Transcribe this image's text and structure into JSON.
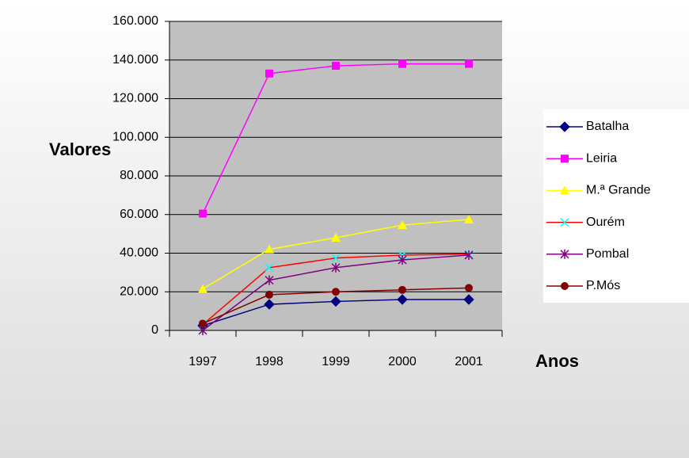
{
  "chart_data": {
    "type": "line",
    "categories": [
      "1997",
      "1998",
      "1999",
      "2000",
      "2001"
    ],
    "xlabel": "Anos",
    "ylabel": "Valores",
    "ylim": [
      0,
      160000
    ],
    "yticks": [
      0,
      {
        "value": 20000,
        "label": "20.000"
      },
      {
        "value": 40000,
        "label": "40.000"
      },
      {
        "value": 60000,
        "label": "60.000"
      },
      {
        "value": 80000,
        "label": "80.000"
      },
      {
        "value": 100000,
        "label": "100.000"
      },
      {
        "value": 120000,
        "label": "120.000"
      },
      {
        "value": 140000,
        "label": "140.000"
      },
      {
        "value": 160000,
        "label": "160.000"
      }
    ],
    "grid": true,
    "legend": "right",
    "series": [
      {
        "name": "Batalha",
        "color": "#000080",
        "marker": "diamond",
        "values": [
          2500,
          13500,
          15000,
          16000,
          16000
        ]
      },
      {
        "name": "Leiria",
        "color": "#ff00ff",
        "marker": "square",
        "values": [
          60500,
          133000,
          137000,
          138000,
          138000
        ]
      },
      {
        "name": "M.ª Grande",
        "color": "#ffff00",
        "marker": "triangle",
        "values": [
          21500,
          42000,
          48000,
          54500,
          57500
        ]
      },
      {
        "name": "Ourém",
        "color": "#ff0000",
        "marker": "x",
        "marker_color": "#00ffff",
        "values": [
          3000,
          32500,
          37500,
          39000,
          39500
        ]
      },
      {
        "name": "Pombal",
        "color": "#800080",
        "marker": "star",
        "values": [
          0,
          26000,
          32500,
          36500,
          39000
        ]
      },
      {
        "name": "P.Mós",
        "color": "#800000",
        "marker": "circle",
        "values": [
          3500,
          18500,
          20000,
          21000,
          22000
        ]
      }
    ]
  }
}
